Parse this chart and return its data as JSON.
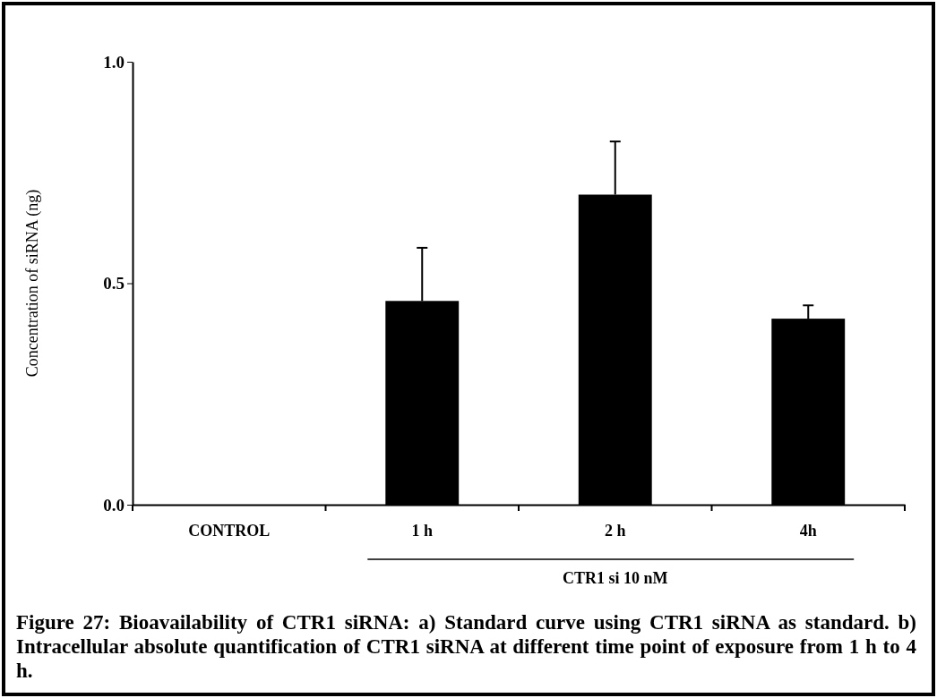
{
  "chart_data": {
    "type": "bar",
    "ylabel": "Concentration of siRNA (ng)",
    "categories": [
      "CONTROL",
      "1 h",
      "2 h",
      "4h"
    ],
    "values": [
      null,
      0.46,
      0.7,
      0.42
    ],
    "errors": [
      null,
      0.12,
      0.12,
      0.03
    ],
    "color": "#000000",
    "ylim": [
      0,
      1
    ],
    "yticks": [
      {
        "value": 0,
        "label": "0.0"
      },
      {
        "value": 0.5,
        "label": "0.5"
      },
      {
        "value": 1,
        "label": "1.0"
      }
    ],
    "annotations": [
      "CTR1 si 10 nM",
      "Figure 27: Bioavailability of CTR1 siRNA: a) Standard curve using CTR1 siRNA as standard. b) Intracellular absolute quantification of CTR1 siRNA at different time point of exposure from 1 h to 4 h."
    ]
  }
}
